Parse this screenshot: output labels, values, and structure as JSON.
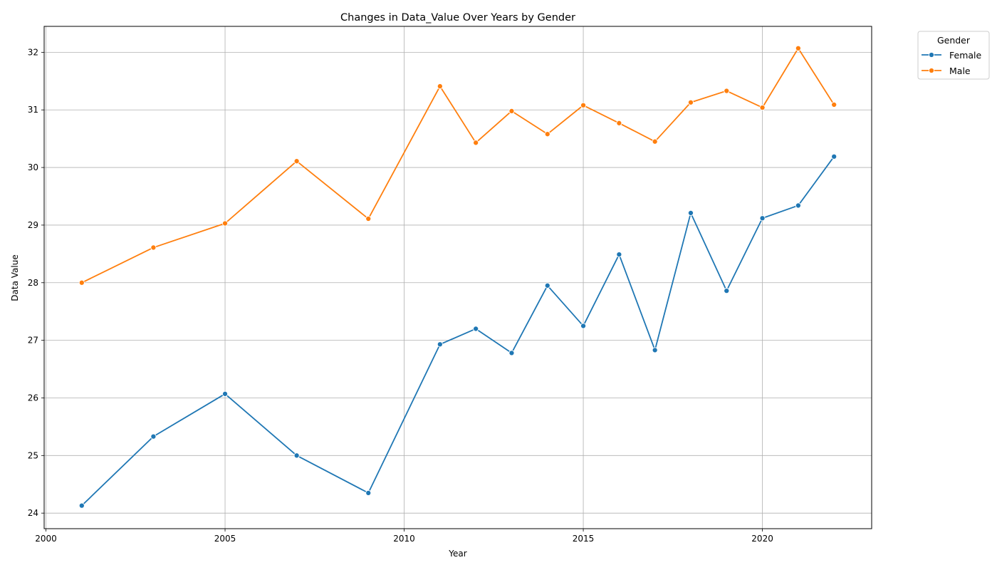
{
  "chart_data": {
    "type": "line",
    "title": "Changes in Data_Value Over Years by Gender",
    "xlabel": "Year",
    "ylabel": "Data Value",
    "xlim": [
      1999.95,
      2023.05
    ],
    "ylim": [
      23.73,
      32.45
    ],
    "xticks": [
      2000,
      2005,
      2010,
      2015,
      2020
    ],
    "yticks": [
      24,
      25,
      26,
      27,
      28,
      29,
      30,
      31,
      32
    ],
    "grid": true,
    "legend": {
      "title": "Gender",
      "placement": "outside-top-right"
    },
    "x": [
      2001,
      2003,
      2005,
      2007,
      2009,
      2011,
      2012,
      2013,
      2014,
      2015,
      2016,
      2017,
      2018,
      2019,
      2020,
      2021,
      2022
    ],
    "series": [
      {
        "name": "Female",
        "color": "#1f77b4",
        "values": [
          24.13,
          25.33,
          26.07,
          25.0,
          24.35,
          26.93,
          27.2,
          26.78,
          27.95,
          27.25,
          28.49,
          26.83,
          29.21,
          27.86,
          29.12,
          29.34,
          30.19
        ]
      },
      {
        "name": "Male",
        "color": "#ff7f0e",
        "values": [
          28.0,
          28.61,
          29.03,
          30.11,
          29.11,
          31.41,
          30.43,
          30.98,
          30.58,
          31.08,
          30.77,
          30.45,
          31.13,
          31.33,
          31.04,
          32.07,
          31.09
        ]
      }
    ]
  }
}
